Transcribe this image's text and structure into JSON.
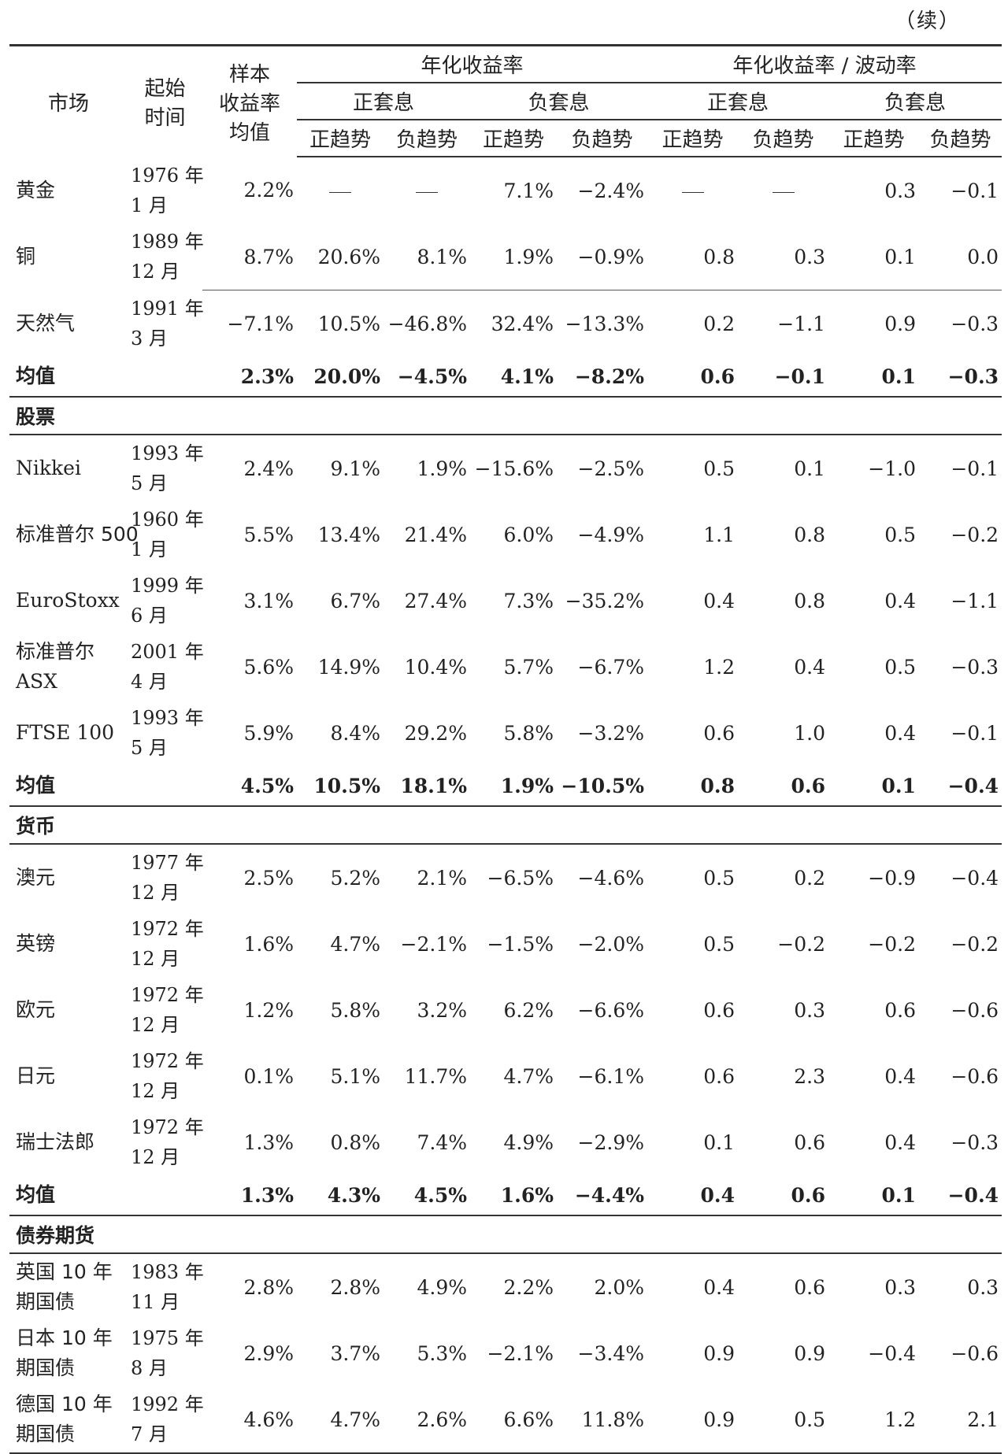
{
  "continued_label": "（续）",
  "headers": {
    "market": "市场",
    "start_time": [
      "起始",
      "时间"
    ],
    "sample_return": [
      "样本",
      "收益率",
      "均值"
    ],
    "annual_return": "年化收益率",
    "return_vol": "年化收益率 / 波动率",
    "pos_carry": "正套息",
    "neg_carry": "负套息",
    "pos_trend": "正趋势",
    "neg_trend": "负趋势"
  },
  "sections": [
    {
      "title": "",
      "rows": [
        {
          "market": [
            "黄金"
          ],
          "start": [
            "1976 年",
            "1 月"
          ],
          "values": [
            "2.2%",
            "—",
            "—",
            "7.1%",
            "−2.4%",
            "—",
            "—",
            "0.3",
            "−0.1"
          ]
        },
        {
          "market": [
            "铜"
          ],
          "start": [
            "1989 年",
            "12 月"
          ],
          "values": [
            "8.7%",
            "20.6%",
            "8.1%",
            "1.9%",
            "−0.9%",
            "0.8",
            "0.3",
            "0.1",
            "0.0"
          ]
        },
        {
          "market": [
            "天然气"
          ],
          "start": [
            "1991 年",
            "3 月"
          ],
          "values": [
            "−7.1%",
            "10.5%",
            "−46.8%",
            "32.4%",
            "−13.3%",
            "0.2",
            "−1.1",
            "0.9",
            "−0.3"
          ]
        }
      ],
      "average": {
        "label": "均值",
        "values": [
          "2.3%",
          "20.0%",
          "−4.5%",
          "4.1%",
          "−8.2%",
          "0.6",
          "−0.1",
          "0.1",
          "−0.3"
        ]
      }
    },
    {
      "title": "股票",
      "rows": [
        {
          "market": [
            "Nikkei"
          ],
          "start": [
            "1993 年",
            "5 月"
          ],
          "values": [
            "2.4%",
            "9.1%",
            "1.9%",
            "−15.6%",
            "−2.5%",
            "0.5",
            "0.1",
            "−1.0",
            "−0.1"
          ]
        },
        {
          "market": [
            "标准普尔 500"
          ],
          "start": [
            "1960 年",
            "1 月"
          ],
          "values": [
            "5.5%",
            "13.4%",
            "21.4%",
            "6.0%",
            "−4.9%",
            "1.1",
            "0.8",
            "0.5",
            "−0.2"
          ]
        },
        {
          "market": [
            "EuroStoxx"
          ],
          "start": [
            "1999 年",
            "6 月"
          ],
          "values": [
            "3.1%",
            "6.7%",
            "27.4%",
            "7.3%",
            "−35.2%",
            "0.4",
            "0.8",
            "0.4",
            "−1.1"
          ]
        },
        {
          "market": [
            "标准普尔",
            "ASX"
          ],
          "start": [
            "2001 年",
            "4 月"
          ],
          "values": [
            "5.6%",
            "14.9%",
            "10.4%",
            "5.7%",
            "−6.7%",
            "1.2",
            "0.4",
            "0.5",
            "−0.3"
          ]
        },
        {
          "market": [
            "FTSE 100"
          ],
          "start": [
            "1993 年",
            "5 月"
          ],
          "values": [
            "5.9%",
            "8.4%",
            "29.2%",
            "5.8%",
            "−3.2%",
            "0.6",
            "1.0",
            "0.4",
            "−0.1"
          ]
        }
      ],
      "average": {
        "label": "均值",
        "values": [
          "4.5%",
          "10.5%",
          "18.1%",
          "1.9%",
          "−10.5%",
          "0.8",
          "0.6",
          "0.1",
          "−0.4"
        ]
      }
    },
    {
      "title": "货币",
      "rows": [
        {
          "market": [
            "澳元"
          ],
          "start": [
            "1977 年",
            "12 月"
          ],
          "values": [
            "2.5%",
            "5.2%",
            "2.1%",
            "−6.5%",
            "−4.6%",
            "0.5",
            "0.2",
            "−0.9",
            "−0.4"
          ]
        },
        {
          "market": [
            "英镑"
          ],
          "start": [
            "1972 年",
            "12 月"
          ],
          "values": [
            "1.6%",
            "4.7%",
            "−2.1%",
            "−1.5%",
            "−2.0%",
            "0.5",
            "−0.2",
            "−0.2",
            "−0.2"
          ]
        },
        {
          "market": [
            "欧元"
          ],
          "start": [
            "1972 年",
            "12 月"
          ],
          "values": [
            "1.2%",
            "5.8%",
            "3.2%",
            "6.2%",
            "−6.6%",
            "0.6",
            "0.3",
            "0.6",
            "−0.6"
          ]
        },
        {
          "market": [
            "日元"
          ],
          "start": [
            "1972 年",
            "12 月"
          ],
          "values": [
            "0.1%",
            "5.1%",
            "11.7%",
            "4.7%",
            "−6.1%",
            "0.6",
            "2.3",
            "0.4",
            "−0.6"
          ]
        },
        {
          "market": [
            "瑞士法郎"
          ],
          "start": [
            "1972 年",
            "12 月"
          ],
          "values": [
            "1.3%",
            "0.8%",
            "7.4%",
            "4.9%",
            "−2.9%",
            "0.1",
            "0.6",
            "0.4",
            "−0.3"
          ]
        }
      ],
      "average": {
        "label": "均值",
        "values": [
          "1.3%",
          "4.3%",
          "4.5%",
          "1.6%",
          "−4.4%",
          "0.4",
          "0.6",
          "0.1",
          "−0.4"
        ]
      }
    },
    {
      "title": "债券期货",
      "rows": [
        {
          "market": [
            "英国 10 年",
            "期国债"
          ],
          "start": [
            "1983 年",
            "11 月"
          ],
          "values": [
            "2.8%",
            "2.8%",
            "4.9%",
            "2.2%",
            "2.0%",
            "0.4",
            "0.6",
            "0.3",
            "0.3"
          ]
        },
        {
          "market": [
            "日本 10 年",
            "期国债"
          ],
          "start": [
            "1975 年",
            "8 月"
          ],
          "values": [
            "2.9%",
            "3.7%",
            "5.3%",
            "−2.1%",
            "−3.4%",
            "0.9",
            "0.9",
            "−0.4",
            "−0.6"
          ]
        },
        {
          "market": [
            "德国 10 年",
            "期国债"
          ],
          "start": [
            "1992 年",
            "7 月"
          ],
          "values": [
            "4.6%",
            "4.7%",
            "2.6%",
            "6.6%",
            "11.8%",
            "0.9",
            "0.5",
            "1.2",
            "2.1"
          ]
        }
      ]
    }
  ]
}
